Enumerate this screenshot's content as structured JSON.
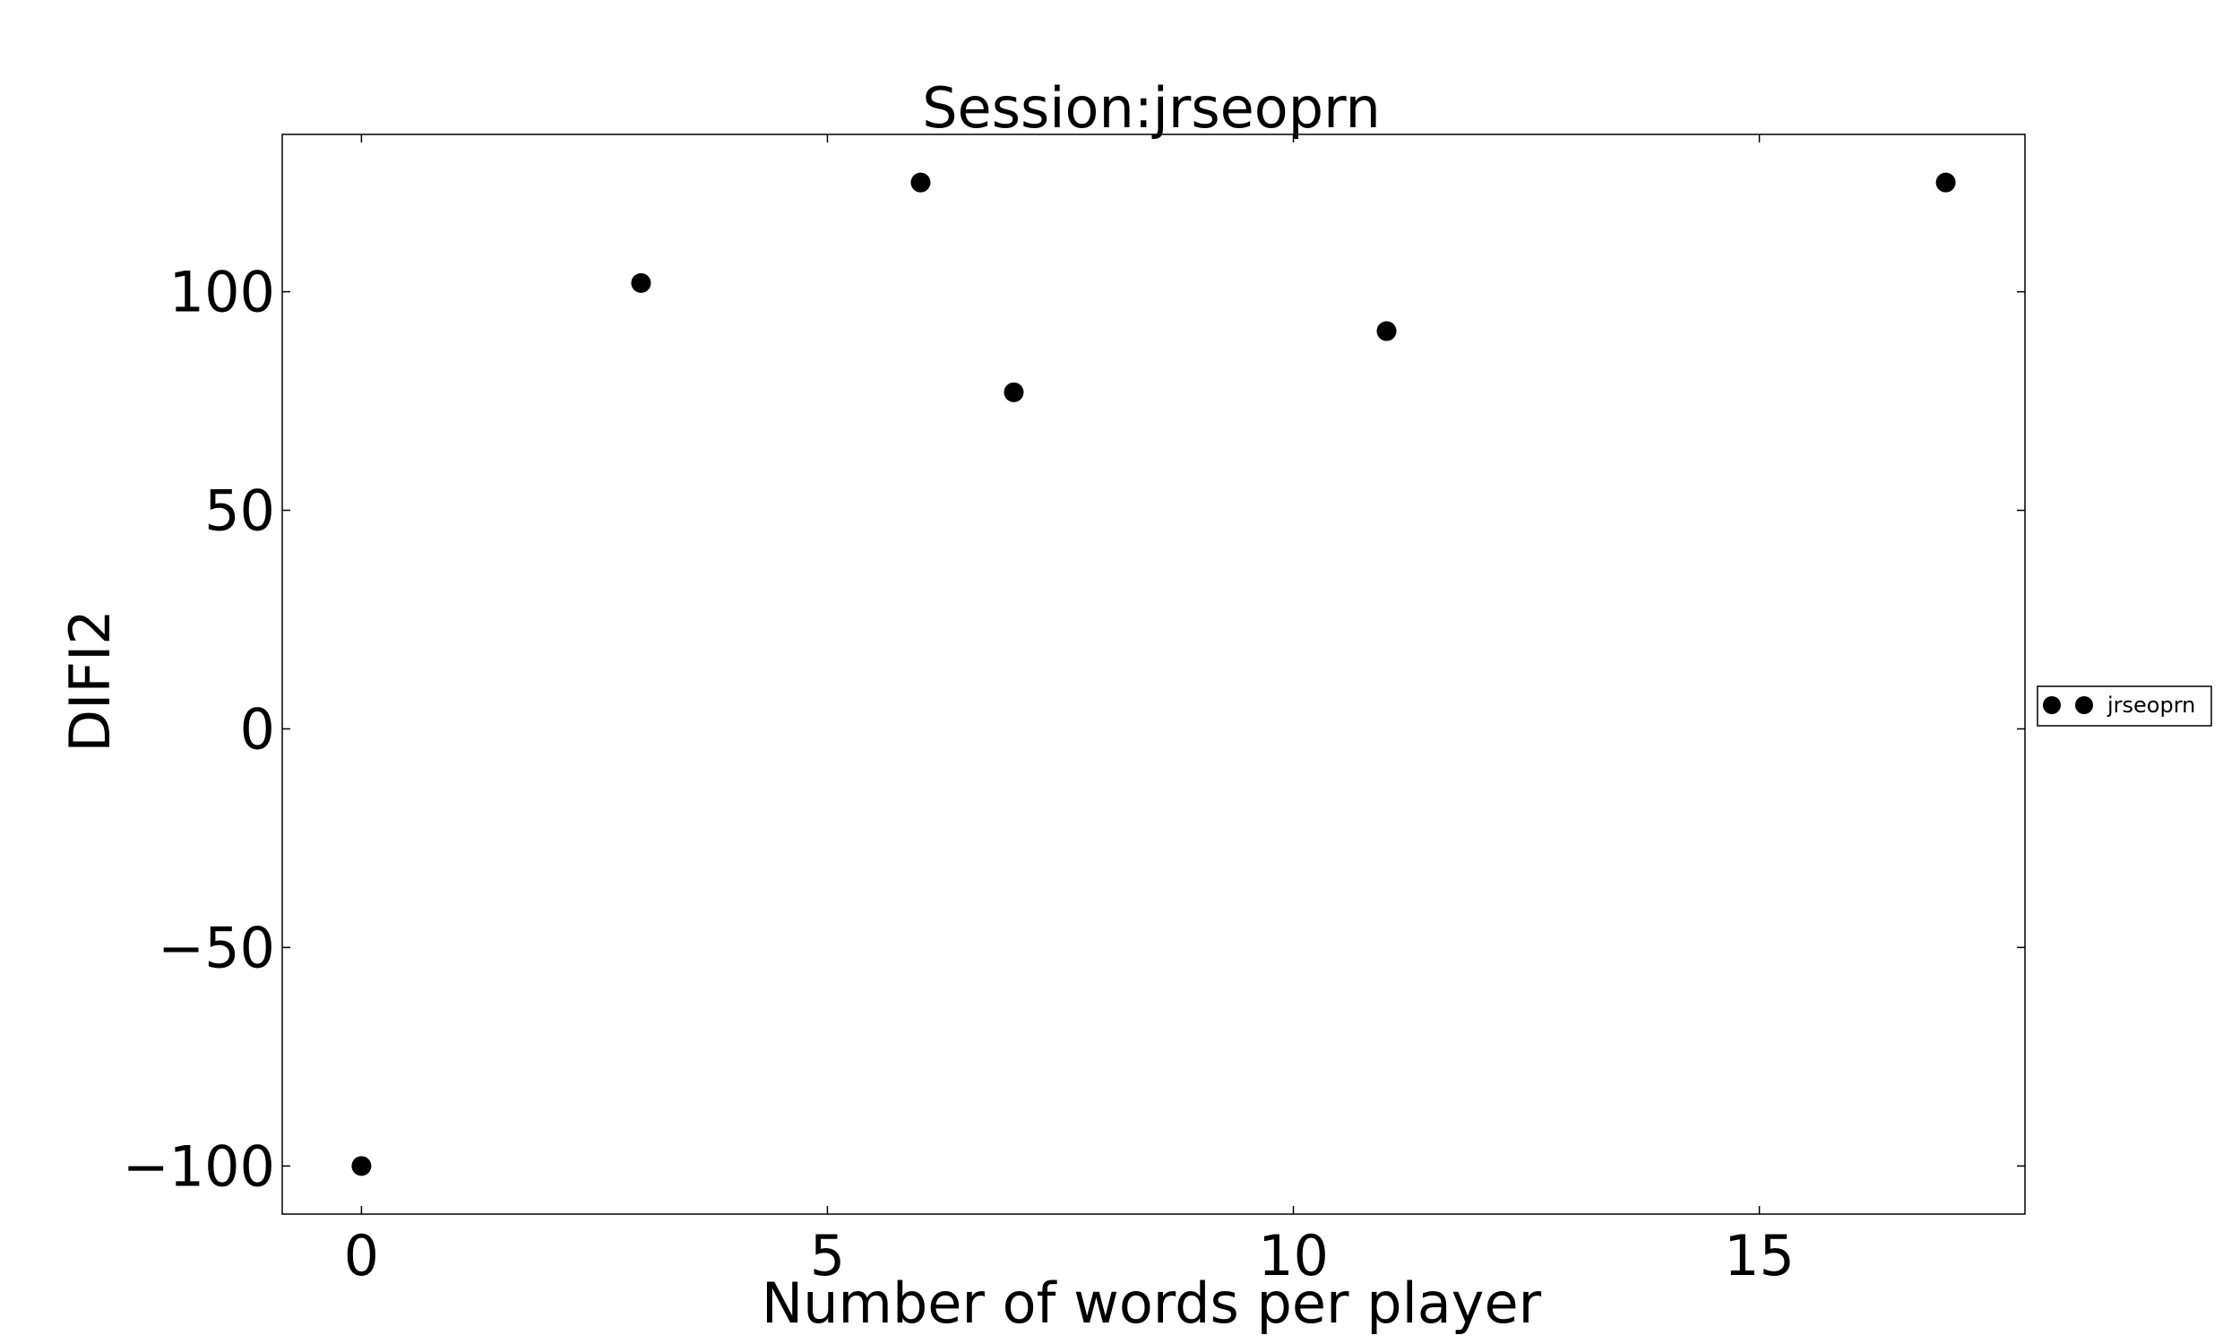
{
  "chart_data": {
    "type": "scatter",
    "title": "Session:jrseoprn",
    "xlabel": "Number of words per player",
    "ylabel": "DIFI2",
    "xlim": [
      -0.85,
      17.85
    ],
    "ylim": [
      -111,
      136
    ],
    "xticks": [
      0,
      5,
      10,
      15
    ],
    "yticks": [
      -100,
      -50,
      0,
      50,
      100
    ],
    "xtick_labels": [
      "0",
      "5",
      "10",
      "15"
    ],
    "ytick_labels": [
      "−100",
      "−50",
      "0",
      "50",
      "100"
    ],
    "grid": false,
    "legend_position": "right",
    "series": [
      {
        "name": "jrseoprn",
        "color": "#000000",
        "marker": "circle",
        "x": [
          0,
          3,
          6,
          7,
          11,
          17
        ],
        "y": [
          -100,
          102,
          125,
          77,
          91,
          125
        ]
      }
    ]
  }
}
